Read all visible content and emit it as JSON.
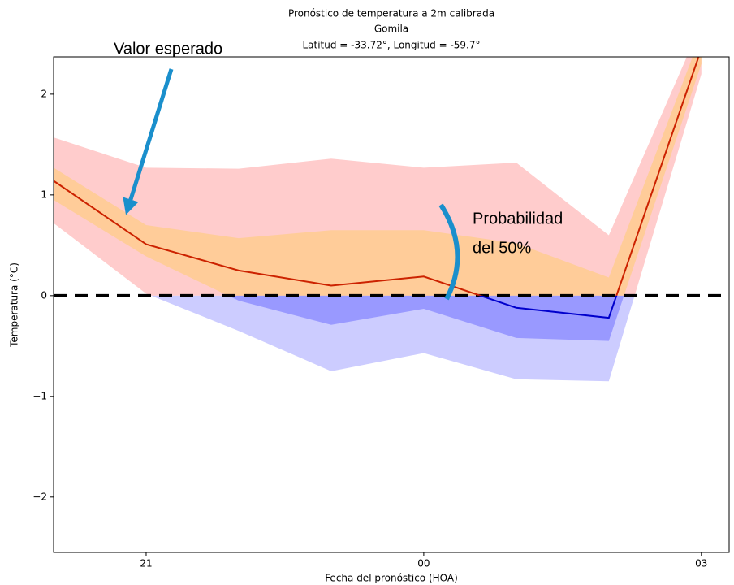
{
  "chart_data": {
    "type": "line",
    "title": [
      "Pronóstico de temperatura a 2m calibrada",
      "Gomila",
      "Latitud = -33.72°, Longitud = -59.7°"
    ],
    "xlabel": "Fecha del pronóstico (HOA)",
    "ylabel": "Temperatura (°C)",
    "x": [
      20,
      21,
      22,
      23,
      24,
      25,
      26,
      27
    ],
    "xlim": [
      20,
      27.3
    ],
    "xticks": [
      21,
      {
        "value": 24,
        "label": "00"
      },
      {
        "value": 27,
        "label": "03"
      }
    ],
    "ylim": [
      -2.55,
      2.37
    ],
    "yticks": [
      {
        "value": -2,
        "label": "−2"
      },
      {
        "value": -1,
        "label": "−1"
      },
      0,
      1,
      2
    ],
    "series": [
      {
        "name": "Valor esperado",
        "color": "#cc2200",
        "negative_color": "#0000cc",
        "values": [
          1.14,
          0.51,
          0.25,
          0.1,
          0.19,
          -0.12,
          -0.22,
          2.45
        ]
      }
    ],
    "bands": [
      {
        "color": "#ffcccc",
        "negative_color": "#ccccff",
        "upper": [
          1.57,
          1.27,
          1.26,
          1.36,
          1.27,
          1.32,
          0.6,
          2.7
        ],
        "lower": [
          0.72,
          0.02,
          -0.35,
          -0.75,
          -0.57,
          -0.83,
          -0.85,
          2.2
        ]
      },
      {
        "color": "#ffcc99",
        "negative_color": "#9999ff",
        "upper": [
          1.27,
          0.7,
          0.57,
          0.65,
          0.65,
          0.52,
          0.18,
          2.6
        ],
        "lower": [
          0.95,
          0.39,
          -0.05,
          -0.29,
          -0.13,
          -0.42,
          -0.45,
          2.3
        ]
      }
    ],
    "hline": 0,
    "annotations": [
      "Valor esperado",
      "Probabilidad",
      "del 50%"
    ]
  }
}
